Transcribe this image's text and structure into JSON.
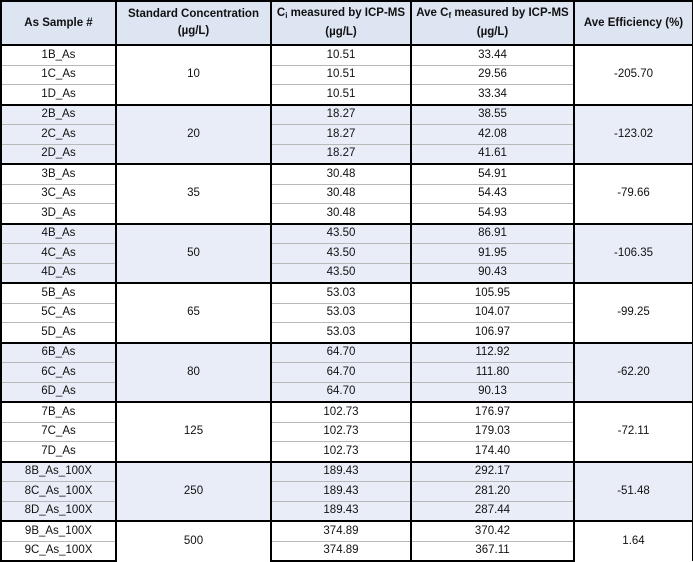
{
  "table": {
    "header": [
      {
        "text": "As Sample #"
      },
      {
        "text": "Standard Concentration (µg/L)"
      },
      {
        "pre": "C",
        "sub": "i",
        "post": " measured by ICP-MS (µg/L)"
      },
      {
        "pre": "Ave C",
        "sub": "f",
        "post": " measured by ICP-MS  (µg/L)"
      },
      {
        "text": "Ave Efficiency (%)"
      }
    ],
    "groups": [
      {
        "concentration": "10",
        "efficiency": "-205.70",
        "rows": [
          [
            "1B_As",
            "10.51",
            "33.44"
          ],
          [
            "1C_As",
            "10.51",
            "29.56"
          ],
          [
            "1D_As",
            "10.51",
            "33.34"
          ]
        ]
      },
      {
        "concentration": "20",
        "efficiency": "-123.02",
        "rows": [
          [
            "2B_As",
            "18.27",
            "38.55"
          ],
          [
            "2C_As",
            "18.27",
            "42.08"
          ],
          [
            "2D_As",
            "18.27",
            "41.61"
          ]
        ]
      },
      {
        "concentration": "35",
        "efficiency": "-79.66",
        "rows": [
          [
            "3B_As",
            "30.48",
            "54.91"
          ],
          [
            "3C_As",
            "30.48",
            "54.43"
          ],
          [
            "3D_As",
            "30.48",
            "54.93"
          ]
        ]
      },
      {
        "concentration": "50",
        "efficiency": "-106.35",
        "rows": [
          [
            "4B_As",
            "43.50",
            "86.91"
          ],
          [
            "4C_As",
            "43.50",
            "91.95"
          ],
          [
            "4D_As",
            "43.50",
            "90.43"
          ]
        ]
      },
      {
        "concentration": "65",
        "efficiency": "-99.25",
        "rows": [
          [
            "5B_As",
            "53.03",
            "105.95"
          ],
          [
            "5C_As",
            "53.03",
            "104.07"
          ],
          [
            "5D_As",
            "53.03",
            "106.97"
          ]
        ]
      },
      {
        "concentration": "80",
        "efficiency": "-62.20",
        "rows": [
          [
            "6B_As",
            "64.70",
            "112.92"
          ],
          [
            "6C_As",
            "64.70",
            "111.80"
          ],
          [
            "6D_As",
            "64.70",
            "90.13"
          ]
        ]
      },
      {
        "concentration": "125",
        "efficiency": "-72.11",
        "rows": [
          [
            "7B_As",
            "102.73",
            "176.97"
          ],
          [
            "7C_As",
            "102.73",
            "179.03"
          ],
          [
            "7D_As",
            "102.73",
            "174.40"
          ]
        ]
      },
      {
        "concentration": "250",
        "efficiency": "-51.48",
        "rows": [
          [
            "8B_As_100X",
            "189.43",
            "292.17"
          ],
          [
            "8C_As_100X",
            "189.43",
            "281.20"
          ],
          [
            "8D_As_100X",
            "189.43",
            "287.44"
          ]
        ]
      },
      {
        "concentration": "500",
        "efficiency": "1.64",
        "rows": [
          [
            "9B_As_100X",
            "374.89",
            "370.42"
          ],
          [
            "9C_As_100X",
            "374.89",
            "367.11"
          ]
        ]
      }
    ]
  }
}
